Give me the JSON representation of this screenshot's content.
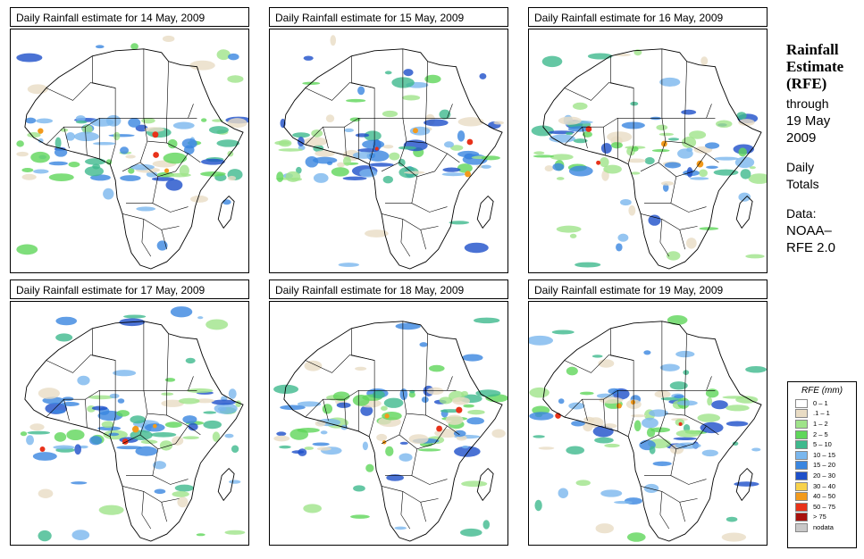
{
  "panels": [
    {
      "id": "p1",
      "title": "Daily Rainfall estimate for  14 May, 2009"
    },
    {
      "id": "p2",
      "title": "Daily Rainfall estimate for  15 May, 2009"
    },
    {
      "id": "p3",
      "title": "Daily Rainfall estimate for  16 May, 2009"
    },
    {
      "id": "p4",
      "title": "Daily Rainfall estimate for  17 May, 2009"
    },
    {
      "id": "p5",
      "title": "Daily Rainfall estimate for  18 May, 2009"
    },
    {
      "id": "p6",
      "title": "Daily Rainfall estimate for  19 May, 2009"
    }
  ],
  "side": {
    "title_line1": "Rainfall",
    "title_line2": "Estimate",
    "title_line3": "(RFE)",
    "through": "through",
    "date_line1": "19 May",
    "date_line2": "2009",
    "daily": "Daily",
    "totals": "Totals",
    "data_label": "Data:",
    "source_line1": "NOAA–",
    "source_line2": "RFE 2.0"
  },
  "legend": {
    "title": "RFE (mm)",
    "items": [
      {
        "label": "0 – 1",
        "color": "#ffffff"
      },
      {
        "label": ".1 – 1",
        "color": "#e9dcc4"
      },
      {
        "label": "1 – 2",
        "color": "#9fe38a"
      },
      {
        "label": "2 – 5",
        "color": "#5fd65a"
      },
      {
        "label": "5 – 10",
        "color": "#3fb98d"
      },
      {
        "label": "10 – 15",
        "color": "#7ab7ee"
      },
      {
        "label": "15 – 20",
        "color": "#3a86e0"
      },
      {
        "label": "20 – 30",
        "color": "#1d4fc9"
      },
      {
        "label": "30 – 40",
        "color": "#f8d24a"
      },
      {
        "label": "40 – 50",
        "color": "#f29a1c"
      },
      {
        "label": "50 – 75",
        "color": "#e8321a"
      },
      {
        "label": "> 75",
        "color": "#a8110d"
      },
      {
        "label": "nodata",
        "color": "#c8c8c8"
      }
    ]
  }
}
